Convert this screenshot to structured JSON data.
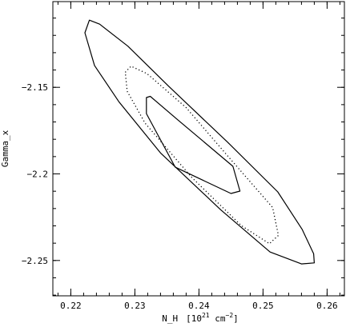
{
  "chart_data": {
    "type": "contour",
    "xlabel": "N_H",
    "xunit_prefix": "[10",
    "xunit_exp": "21",
    "xunit_mid": " cm",
    "xunit_exp2": "−2",
    "xunit_suffix": "]",
    "ylabel": "Gamma_x",
    "xlim": [
      0.2172,
      0.2627
    ],
    "ylim": [
      -2.2704,
      -2.1005
    ],
    "grid": false,
    "x_ticks": [
      {
        "value": 0.22,
        "label": "0.22"
      },
      {
        "value": 0.23,
        "label": "0.23"
      },
      {
        "value": 0.24,
        "label": "0.24"
      },
      {
        "value": 0.25,
        "label": "0.25"
      },
      {
        "value": 0.26,
        "label": "0.26"
      }
    ],
    "y_ticks": [
      {
        "value": -2.15,
        "label": "−2.15"
      },
      {
        "value": -2.2,
        "label": "−2.2"
      },
      {
        "value": -2.25,
        "label": "−2.25"
      }
    ],
    "x_minor_step": 0.002,
    "y_minor_step": 0.01,
    "contours": [
      {
        "level": "inner",
        "style": "solid",
        "color": "#000000",
        "points": [
          [
            0.2318,
            -2.1559
          ],
          [
            0.2324,
            -2.1552
          ],
          [
            0.2367,
            -2.1688
          ],
          [
            0.2453,
            -2.1956
          ],
          [
            0.2464,
            -2.2099
          ],
          [
            0.245,
            -2.2113
          ],
          [
            0.2363,
            -2.1961
          ],
          [
            0.2318,
            -2.1652
          ],
          [
            0.2318,
            -2.1559
          ]
        ]
      },
      {
        "level": "middle",
        "style": "dotted",
        "color": "#000000",
        "points": [
          [
            0.2285,
            -2.1413
          ],
          [
            0.2294,
            -2.1378
          ],
          [
            0.2319,
            -2.1421
          ],
          [
            0.238,
            -2.1617
          ],
          [
            0.2444,
            -2.1893
          ],
          [
            0.2515,
            -2.2194
          ],
          [
            0.2524,
            -2.2355
          ],
          [
            0.251,
            -2.2403
          ],
          [
            0.2466,
            -2.2298
          ],
          [
            0.2389,
            -2.2021
          ],
          [
            0.2316,
            -2.1707
          ],
          [
            0.2288,
            -2.1523
          ],
          [
            0.2285,
            -2.1413
          ]
        ]
      },
      {
        "level": "outer",
        "style": "solid",
        "color": "#000000",
        "points": [
          [
            0.2222,
            -2.1185
          ],
          [
            0.2229,
            -2.1112
          ],
          [
            0.2245,
            -2.1135
          ],
          [
            0.2289,
            -2.1262
          ],
          [
            0.2353,
            -2.1495
          ],
          [
            0.2445,
            -2.1818
          ],
          [
            0.2523,
            -2.2104
          ],
          [
            0.2561,
            -2.232
          ],
          [
            0.2579,
            -2.2461
          ],
          [
            0.258,
            -2.2514
          ],
          [
            0.256,
            -2.252
          ],
          [
            0.2511,
            -2.2451
          ],
          [
            0.2434,
            -2.2207
          ],
          [
            0.234,
            -2.1879
          ],
          [
            0.2275,
            -2.1583
          ],
          [
            0.2237,
            -2.1374
          ],
          [
            0.2222,
            -2.1185
          ]
        ]
      }
    ]
  }
}
